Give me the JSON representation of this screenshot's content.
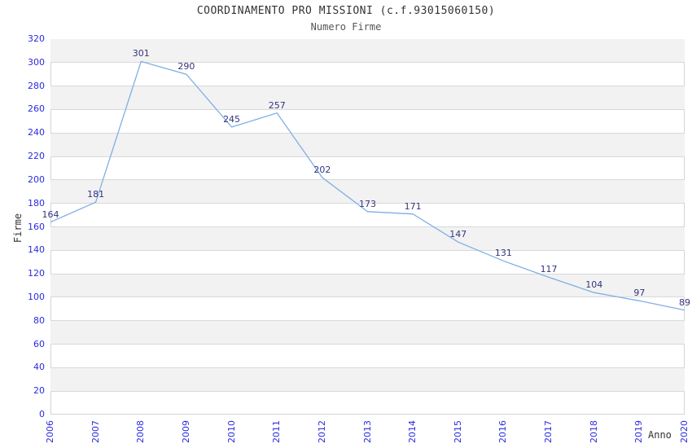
{
  "chart_data": {
    "type": "line",
    "title": "COORDINAMENTO PRO MISSIONI (c.f.93015060150)",
    "subtitle": "Numero Firme",
    "xlabel": "Anno",
    "ylabel": "Firme",
    "categories": [
      "2006",
      "2007",
      "2008",
      "2009",
      "2010",
      "2011",
      "2012",
      "2013",
      "2014",
      "2015",
      "2016",
      "2017",
      "2018",
      "2019",
      "2020"
    ],
    "values": [
      164,
      181,
      301,
      290,
      245,
      257,
      202,
      173,
      171,
      147,
      131,
      117,
      104,
      97,
      89
    ],
    "ylim": [
      0,
      320
    ],
    "ytick_step": 20,
    "grid": "horizontal-bands",
    "legend": "none",
    "data_labels": true,
    "colors": {
      "line": "#7fafe6",
      "axis_tick_label": "#2b2be0",
      "data_label": "#333380",
      "band_gray": "#f2f2f2",
      "band_white": "#ffffff",
      "gridline": "#d9d9d9",
      "plot_border": "#d4d4d4",
      "title": "#333333",
      "subtitle": "#555555",
      "axis_title": "#333333"
    }
  }
}
